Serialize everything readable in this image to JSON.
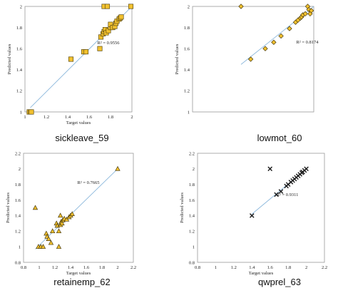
{
  "chart_data": [
    {
      "type": "scatter",
      "caption": "sickleave_59",
      "xlabel": "Target values",
      "ylabel": "Predicted values",
      "xlim": [
        1,
        2
      ],
      "ylim": [
        1,
        2
      ],
      "xticks": [
        "1",
        "1.2",
        "1.4",
        "1.6",
        "1.8",
        "2"
      ],
      "yticks": [
        "1",
        "1.2",
        "1.4",
        "1.6",
        "1.8",
        "2"
      ],
      "marker": "square",
      "r2_label": "R² = 0.9556",
      "trendline": [
        [
          1.05,
          1.04
        ],
        [
          1.99,
          1.99
        ]
      ],
      "grid": false,
      "x": [
        1.04,
        1.05,
        1.06,
        1.43,
        1.55,
        1.57,
        1.7,
        1.71,
        1.73,
        1.74,
        1.75,
        1.76,
        1.78,
        1.8,
        1.8,
        1.82,
        1.84,
        1.85,
        1.86,
        1.88,
        1.89,
        1.9,
        1.74,
        1.77,
        1.99
      ],
      "y": [
        1.0,
        1.0,
        1.0,
        1.5,
        1.57,
        1.57,
        1.6,
        1.71,
        1.74,
        1.76,
        1.78,
        1.75,
        1.77,
        1.8,
        1.83,
        1.8,
        1.81,
        1.84,
        1.86,
        1.88,
        1.89,
        1.9,
        2.0,
        2.0,
        2.0
      ]
    },
    {
      "type": "scatter",
      "caption": "lowmot_60",
      "xlabel": "",
      "ylabel": "Predicted values",
      "xlim": [
        1,
        2
      ],
      "ylim": [
        1,
        2
      ],
      "xticks": [],
      "yticks": [
        "1",
        "1.2",
        "1.4",
        "1.6",
        "1.8",
        "2"
      ],
      "marker": "diamond",
      "r2_label": "R² = 0.8174",
      "trendline": [
        [
          1.4,
          1.45
        ],
        [
          2.0,
          2.0
        ]
      ],
      "grid": false,
      "x": [
        1.4,
        1.48,
        1.6,
        1.67,
        1.73,
        1.8,
        1.85,
        1.87,
        1.89,
        1.9,
        1.91,
        1.93,
        1.95,
        1.96,
        1.97,
        1.98
      ],
      "y": [
        2.0,
        1.5,
        1.6,
        1.66,
        1.72,
        1.79,
        1.85,
        1.87,
        1.89,
        1.9,
        1.92,
        1.93,
        2.0,
        1.97,
        1.93,
        1.96
      ]
    },
    {
      "type": "scatter",
      "caption": "retainemp_62",
      "xlabel": "Target values",
      "ylabel": "Predicted values",
      "xlim": [
        0.8,
        2.2
      ],
      "ylim": [
        0.8,
        2.2
      ],
      "xticks": [
        "0.8",
        "1",
        "1.2",
        "1.4",
        "1.6",
        "1.8",
        "2",
        "2.2"
      ],
      "yticks": [
        "0.8",
        "1",
        "1.2",
        "1.4",
        "1.6",
        "1.8",
        "2",
        "2.2"
      ],
      "marker": "triangle",
      "r2_label": "R² = 0.7665",
      "trendline": [
        [
          0.95,
          0.97
        ],
        [
          2.0,
          2.0
        ]
      ],
      "grid": false,
      "x": [
        0.95,
        0.99,
        1.02,
        1.05,
        1.09,
        1.1,
        1.12,
        1.15,
        1.17,
        1.22,
        1.23,
        1.25,
        1.27,
        1.28,
        1.3,
        1.32,
        1.35,
        1.38,
        1.4,
        1.42,
        1.25,
        1.27,
        1.29,
        2.0
      ],
      "y": [
        1.5,
        1.0,
        1.0,
        1.0,
        1.17,
        1.13,
        1.1,
        1.05,
        1.2,
        1.3,
        1.27,
        1.0,
        1.28,
        1.32,
        1.34,
        1.36,
        1.35,
        1.38,
        1.4,
        1.42,
        1.2,
        1.4,
        1.3,
        2.0
      ]
    },
    {
      "type": "scatter",
      "caption": "qwprel_63",
      "xlabel": "Target values",
      "ylabel": "Predicted values",
      "xlim": [
        0.8,
        2.2
      ],
      "ylim": [
        0.8,
        2.2
      ],
      "xticks": [
        "0.8",
        "1",
        "1.2",
        "1.4",
        "1.6",
        "1.8",
        "2",
        "2.2"
      ],
      "yticks": [
        "0.8",
        "1",
        "1.2",
        "1.4",
        "1.6",
        "1.8",
        "2",
        "2.2"
      ],
      "marker": "x",
      "r2_label": "R² = 0.9311",
      "trendline": [
        [
          1.4,
          1.42
        ],
        [
          2.0,
          2.0
        ]
      ],
      "grid": false,
      "x": [
        1.4,
        1.6,
        1.67,
        1.72,
        1.78,
        1.8,
        1.83,
        1.85,
        1.87,
        1.89,
        1.91,
        1.93,
        1.95,
        1.96,
        1.98,
        2.0
      ],
      "y": [
        1.4,
        2.0,
        1.67,
        1.71,
        1.78,
        1.8,
        1.83,
        1.85,
        1.87,
        1.89,
        1.91,
        1.93,
        1.95,
        1.96,
        1.98,
        2.0
      ]
    }
  ]
}
